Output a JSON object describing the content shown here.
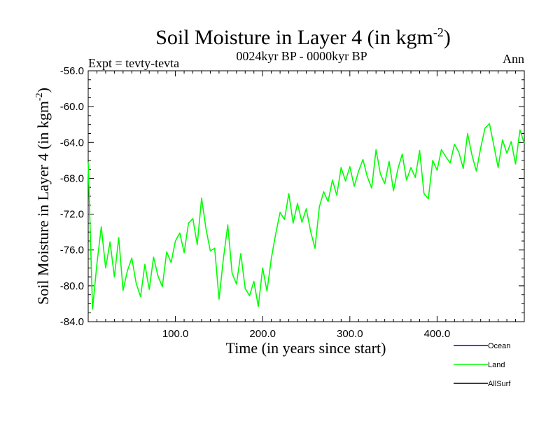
{
  "chart_data": {
    "type": "line",
    "title": "Soil Moisture in Layer 4 (in kgm",
    "title_sup": "-2",
    "title_close": ")",
    "subtitle": "0024kyr BP - 0000kyr BP",
    "left_label": "Expt = tevty-tevta",
    "right_label": "Ann",
    "xlabel": "Time (in years since start)",
    "ylabel": "Soil Moisture in Layer 4 (in kgm",
    "ylabel_sup": "-2",
    "ylabel_close": ")",
    "xlim": [
      0,
      500
    ],
    "ylim": [
      -84,
      -56
    ],
    "xticks": [
      100,
      200,
      300,
      400
    ],
    "xtick_labels": [
      "100.0",
      "200.0",
      "300.0",
      "400.0"
    ],
    "yticks": [
      -84,
      -80,
      -76,
      -72,
      -68,
      -64,
      -60,
      -56
    ],
    "ytick_labels": [
      "-84.0",
      "-80.0",
      "-76.0",
      "-72.0",
      "-68.0",
      "-64.0",
      "-60.0",
      "-56.0"
    ],
    "grid": false,
    "legend_position": "bottom-right",
    "series": [
      {
        "name": "Ocean",
        "color": "#0000ff",
        "x": [],
        "y": []
      },
      {
        "name": "Land",
        "color": "#00ff00",
        "x": [
          0,
          5,
          10,
          15,
          20,
          25,
          30,
          35,
          40,
          45,
          50,
          55,
          60,
          65,
          70,
          75,
          80,
          85,
          90,
          95,
          100,
          105,
          110,
          115,
          120,
          125,
          130,
          135,
          140,
          145,
          150,
          155,
          160,
          165,
          170,
          175,
          180,
          185,
          190,
          195,
          200,
          205,
          210,
          215,
          220,
          225,
          230,
          235,
          240,
          245,
          250,
          255,
          260,
          265,
          270,
          275,
          280,
          285,
          290,
          295,
          300,
          305,
          310,
          315,
          320,
          325,
          330,
          335,
          340,
          345,
          350,
          355,
          360,
          365,
          370,
          375,
          380,
          385,
          390,
          395,
          400,
          405,
          410,
          415,
          420,
          425,
          430,
          435,
          440,
          445,
          450,
          455,
          460,
          465,
          470,
          475,
          480,
          485,
          490,
          495,
          500
        ],
        "y": [
          -66.2,
          -82.6,
          -77.5,
          -73.4,
          -78.0,
          -75.1,
          -79.0,
          -74.6,
          -80.5,
          -78.3,
          -76.9,
          -79.7,
          -81.2,
          -77.6,
          -80.4,
          -76.8,
          -78.9,
          -80.1,
          -76.2,
          -77.4,
          -75.0,
          -74.1,
          -76.3,
          -73.0,
          -72.5,
          -75.4,
          -70.2,
          -73.6,
          -76.1,
          -75.8,
          -81.5,
          -77.0,
          -73.2,
          -78.6,
          -79.8,
          -76.4,
          -80.3,
          -81.1,
          -79.5,
          -82.3,
          -78.0,
          -80.6,
          -76.9,
          -74.2,
          -71.8,
          -72.6,
          -69.7,
          -73.0,
          -70.8,
          -72.9,
          -71.4,
          -73.9,
          -75.8,
          -71.2,
          -69.5,
          -70.6,
          -68.2,
          -69.9,
          -66.8,
          -68.3,
          -66.7,
          -68.9,
          -67.2,
          -65.9,
          -67.8,
          -69.1,
          -64.8,
          -67.5,
          -68.6,
          -66.1,
          -69.4,
          -67.0,
          -65.3,
          -68.2,
          -66.8,
          -67.9,
          -64.9,
          -69.7,
          -70.3,
          -66.0,
          -67.1,
          -64.8,
          -65.6,
          -66.3,
          -64.2,
          -65.1,
          -66.9,
          -63.0,
          -65.4,
          -67.2,
          -64.6,
          -62.4,
          -61.9,
          -64.3,
          -66.8,
          -63.7,
          -65.2,
          -63.9,
          -66.4,
          -62.6,
          -64.1
        ]
      },
      {
        "name": "AllSurf",
        "color": "#000000",
        "x": [],
        "y": []
      }
    ]
  }
}
